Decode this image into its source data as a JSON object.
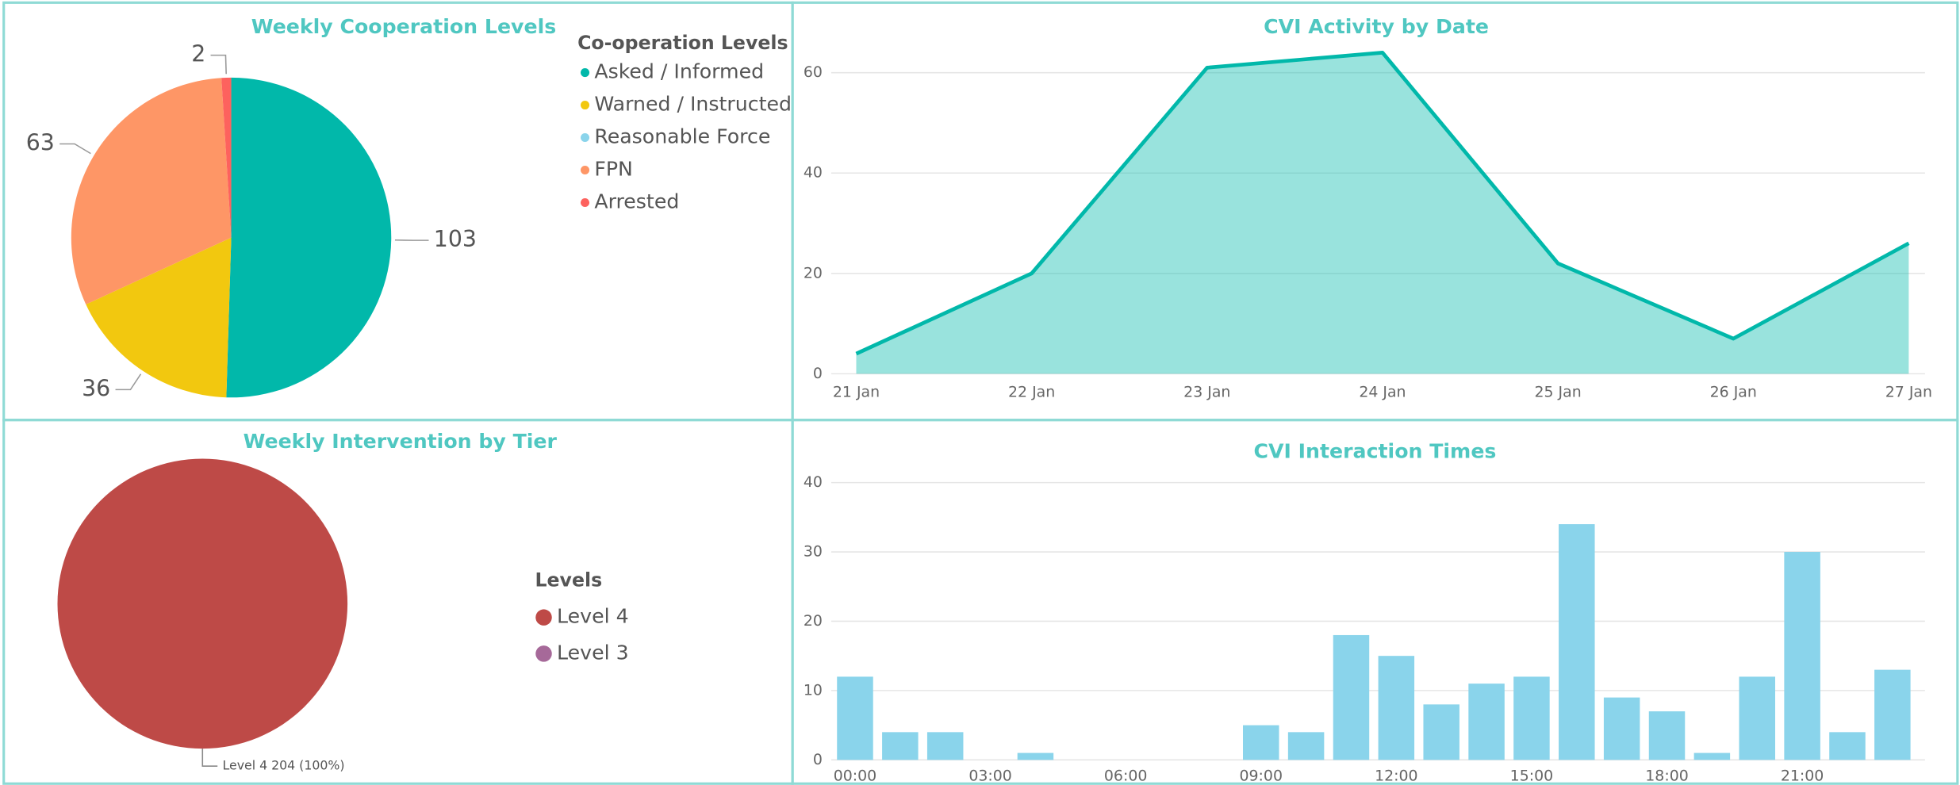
{
  "chart_data": [
    {
      "type": "pie",
      "title": "Weekly Cooperation Levels",
      "legend_title": "Co-operation Levels",
      "categories": [
        "Asked / Informed",
        "Warned / Instructed",
        "Reasonable Force",
        "FPN",
        "Arrested"
      ],
      "values": [
        103,
        36,
        0,
        63,
        2
      ],
      "colors": [
        "#01b8aa",
        "#f2c80f",
        "#8ad4eb",
        "#fe9666",
        "#fd625e"
      ]
    },
    {
      "type": "area",
      "title": "CVI Activity by Date",
      "categories": [
        "21 Jan",
        "22 Jan",
        "23 Jan",
        "24 Jan",
        "25 Jan",
        "26 Jan",
        "27 Jan"
      ],
      "values": [
        4,
        20,
        61,
        64,
        22,
        7,
        26
      ],
      "color": "#01b8aa",
      "ylim": [
        0,
        65
      ],
      "yticks": [
        0,
        20,
        40,
        60
      ],
      "grid": true
    },
    {
      "type": "pie",
      "title": "Weekly Intervention by Tier",
      "legend_title": "Levels",
      "categories": [
        "Level 4",
        "Level 3"
      ],
      "values": [
        204,
        0
      ],
      "value_labels": [
        "Level 4 204 (100%)",
        null
      ],
      "colors": [
        "#be4a47",
        "#a66999"
      ]
    },
    {
      "type": "bar",
      "title": "CVI Interaction Times",
      "categories": [
        "00:00",
        null,
        null,
        "03:00",
        null,
        null,
        "06:00",
        null,
        null,
        "09:00",
        null,
        null,
        "12:00",
        null,
        null,
        "15:00",
        null,
        null,
        "18:00",
        null,
        null,
        "21:00",
        null,
        null
      ],
      "values": [
        12,
        4,
        4,
        0,
        1,
        0,
        0,
        0,
        0,
        5,
        4,
        18,
        15,
        8,
        11,
        12,
        34,
        9,
        7,
        1,
        12,
        30,
        4,
        13
      ],
      "color": "#8ad4eb",
      "ylim": [
        0,
        42
      ],
      "yticks": [
        0,
        10,
        20,
        30,
        40
      ],
      "grid": true
    }
  ]
}
